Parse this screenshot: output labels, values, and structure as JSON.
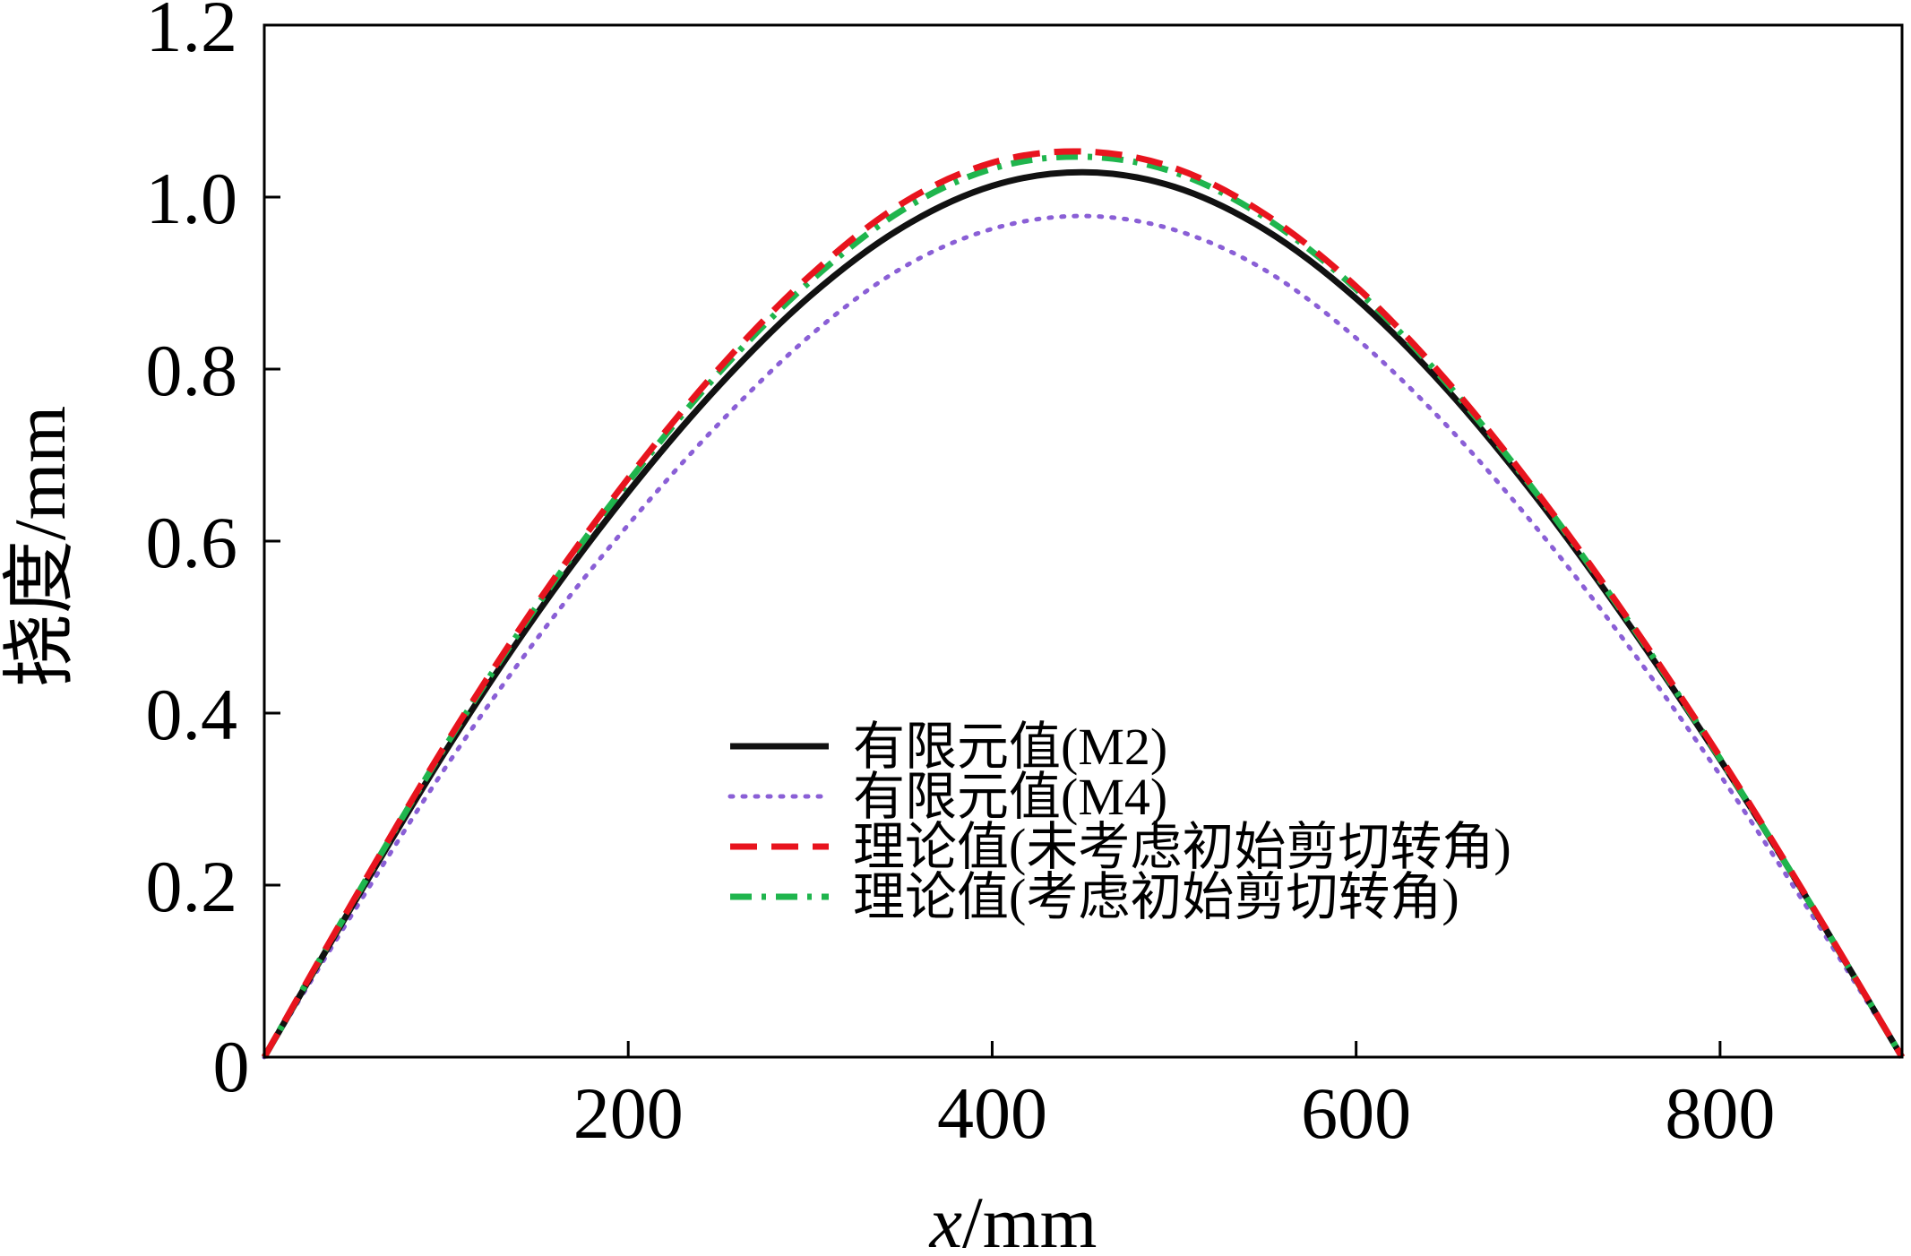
{
  "chart_data": {
    "type": "line",
    "xlabel_var": "x",
    "xlabel_unit": "/mm",
    "ylabel": "挠度/mm",
    "xlim": [
      0,
      900
    ],
    "ylim": [
      0,
      1.2
    ],
    "xticks": [
      200,
      400,
      600,
      800
    ],
    "xtick_labels": [
      "200",
      "400",
      "600",
      "800"
    ],
    "yticks": [
      0,
      0.2,
      0.4,
      0.6,
      0.8,
      1.0,
      1.2
    ],
    "ytick_labels": [
      "0",
      "0.2",
      "0.4",
      "0.6",
      "0.8",
      "1.0",
      "1.2"
    ],
    "grid": false,
    "legend_position": "center-bottom",
    "x": [
      0,
      50,
      100,
      150,
      200,
      250,
      300,
      350,
      400,
      450,
      500,
      550,
      600,
      650,
      700,
      750,
      800,
      850,
      900
    ],
    "series": [
      {
        "name": "有限元值(M2)",
        "style": "solid",
        "color": "#111111",
        "values": [
          0,
          0.182,
          0.357,
          0.516,
          0.657,
          0.781,
          0.885,
          0.964,
          1.013,
          1.029,
          1.012,
          0.962,
          0.882,
          0.776,
          0.648,
          0.503,
          0.346,
          0.177,
          0
        ]
      },
      {
        "name": "有限元值(M4)",
        "style": "dotted",
        "color": "#8a5fd6",
        "values": [
          0,
          0.172,
          0.338,
          0.487,
          0.619,
          0.737,
          0.839,
          0.917,
          0.963,
          0.978,
          0.962,
          0.915,
          0.836,
          0.734,
          0.613,
          0.477,
          0.328,
          0.167,
          0
        ]
      },
      {
        "name": "理论值(未考虑初始剪切转角)",
        "style": "dashed",
        "color": "#e8141e",
        "values": [
          0,
          0.186,
          0.365,
          0.528,
          0.673,
          0.801,
          0.909,
          0.992,
          1.04,
          1.053,
          1.034,
          0.98,
          0.896,
          0.786,
          0.655,
          0.508,
          0.349,
          0.178,
          0
        ]
      },
      {
        "name": "理论值(考虑初始剪切转角)",
        "style": "dashdot",
        "color": "#1fb54d",
        "values": [
          0,
          0.185,
          0.363,
          0.525,
          0.669,
          0.796,
          0.902,
          0.984,
          1.033,
          1.047,
          1.029,
          0.976,
          0.893,
          0.783,
          0.653,
          0.506,
          0.347,
          0.177,
          0
        ]
      }
    ]
  }
}
